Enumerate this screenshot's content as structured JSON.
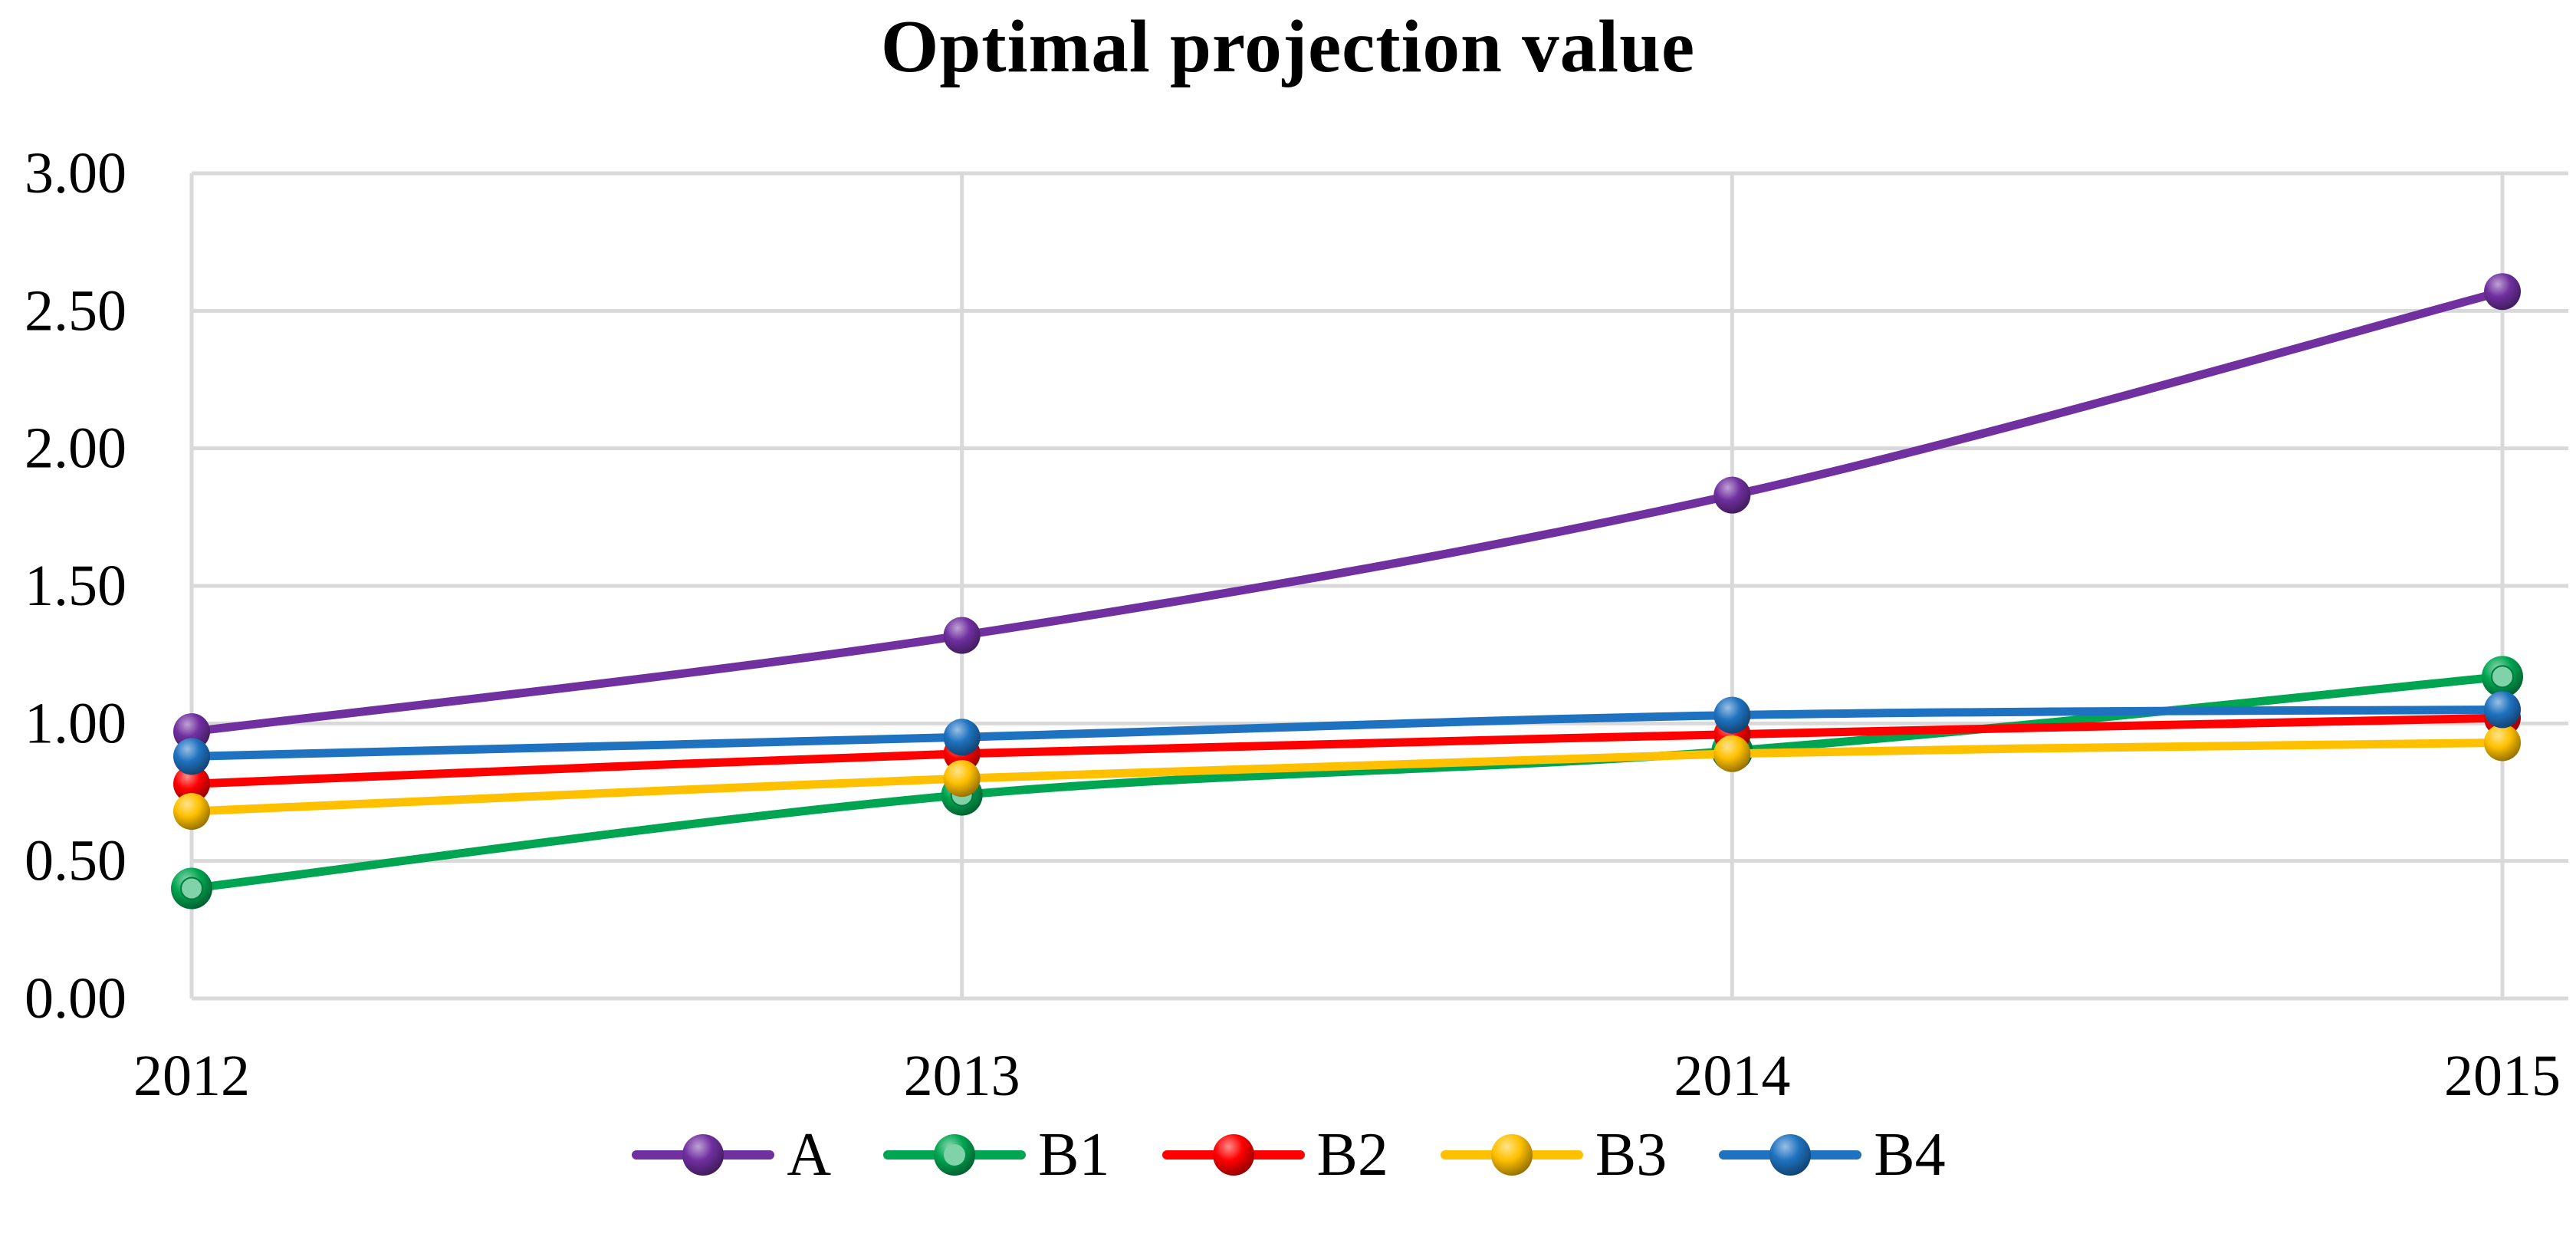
{
  "chart_data": {
    "type": "line",
    "title": "Optimal projection value",
    "x": [
      "2012",
      "2013",
      "2014",
      "2015"
    ],
    "series": [
      {
        "name": "A",
        "color": "#7030A0",
        "values": [
          0.97,
          1.32,
          1.83,
          2.57
        ]
      },
      {
        "name": "B1",
        "color": "#00A551",
        "values": [
          0.4,
          0.74,
          0.9,
          1.17
        ]
      },
      {
        "name": "B2",
        "color": "#FF0000",
        "values": [
          0.78,
          0.89,
          0.96,
          1.02
        ]
      },
      {
        "name": "B3",
        "color": "#FFC000",
        "values": [
          0.68,
          0.8,
          0.89,
          0.93
        ]
      },
      {
        "name": "B4",
        "color": "#1F72C0",
        "values": [
          0.88,
          0.95,
          1.03,
          1.05
        ]
      }
    ],
    "xlabel": "",
    "ylabel": "",
    "ylim": [
      0,
      3
    ],
    "y_ticks": [
      "0.00",
      "0.50",
      "1.00",
      "1.50",
      "2.00",
      "2.50",
      "3.00"
    ],
    "grid": true,
    "grid_color": "#D9D9D9",
    "text_color": "#000000",
    "background_color": "#FFFFFF",
    "legend_position": "bottom",
    "marker_style": "3d-sphere"
  }
}
